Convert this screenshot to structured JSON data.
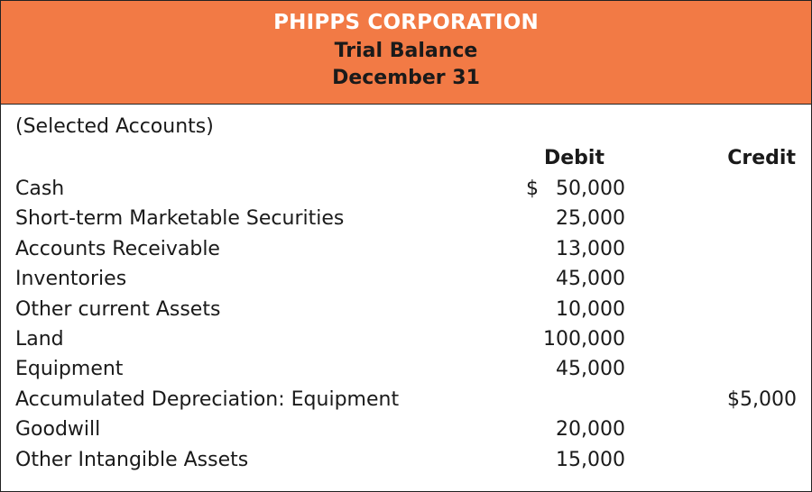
{
  "header": {
    "company": "PHIPPS CORPORATION",
    "title": "Trial Balance",
    "date": "December 31",
    "background_color": "#f27a45"
  },
  "note": "(Selected Accounts)",
  "columns": {
    "debit": "Debit",
    "credit": "Credit"
  },
  "rows": [
    {
      "name": "Cash",
      "dollar": "$",
      "debit": "50,000",
      "credit": ""
    },
    {
      "name": "Short-term Marketable Securities",
      "dollar": "",
      "debit": "25,000",
      "credit": ""
    },
    {
      "name": "Accounts Receivable",
      "dollar": "",
      "debit": "13,000",
      "credit": ""
    },
    {
      "name": "Inventories",
      "dollar": "",
      "debit": "45,000",
      "credit": ""
    },
    {
      "name": "Other current Assets",
      "dollar": "",
      "debit": "10,000",
      "credit": ""
    },
    {
      "name": "Land",
      "dollar": "",
      "debit": "100,000",
      "credit": ""
    },
    {
      "name": "Equipment",
      "dollar": "",
      "debit": "45,000",
      "credit": ""
    },
    {
      "name": "Accumulated Depreciation: Equipment",
      "dollar": "",
      "debit": "",
      "credit": "$5,000"
    },
    {
      "name": "Goodwill",
      "dollar": "",
      "debit": "20,000",
      "credit": ""
    },
    {
      "name": "Other Intangible Assets",
      "dollar": "",
      "debit": "15,000",
      "credit": ""
    }
  ]
}
